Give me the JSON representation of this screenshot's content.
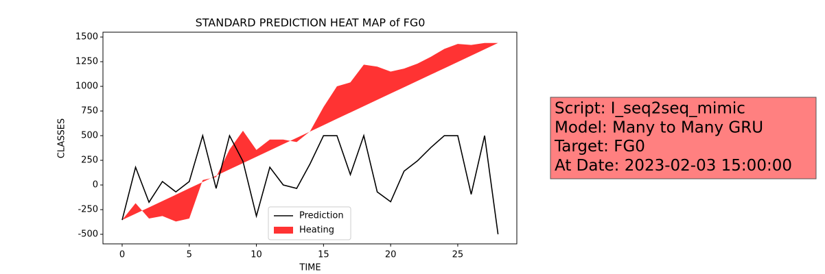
{
  "chart_data": {
    "type": "line",
    "title": "STANDARD PREDICTION HEAT MAP of FG0",
    "xlabel": "TIME",
    "ylabel": "CLASSES",
    "x": [
      0,
      1,
      2,
      3,
      4,
      5,
      6,
      7,
      8,
      9,
      10,
      11,
      12,
      13,
      14,
      15,
      16,
      17,
      18,
      19,
      20,
      21,
      22,
      23,
      24,
      25,
      26,
      27,
      28
    ],
    "series": [
      {
        "name": "Prediction",
        "color": "#000000",
        "style": "line",
        "values": [
          -355,
          180,
          -175,
          35,
          -70,
          35,
          500,
          -35,
          500,
          240,
          -315,
          180,
          0,
          -35,
          215,
          500,
          500,
          105,
          500,
          -70,
          -170,
          140,
          245,
          380,
          500,
          500,
          -95,
          500,
          -500
        ]
      },
      {
        "name": "Heating",
        "color": "#ff0000",
        "style": "fill_between",
        "values": [
          -355,
          -185,
          -340,
          -315,
          -370,
          -340,
          50,
          80,
          360,
          550,
          355,
          460,
          460,
          435,
          545,
          790,
          1000,
          1040,
          1220,
          1200,
          1150,
          1180,
          1230,
          1300,
          1380,
          1430,
          1420,
          1440,
          1440
        ],
        "baseline": [
          -355,
          -291,
          -227,
          -163,
          -99,
          -34,
          30,
          94,
          158,
          222,
          286,
          350,
          414,
          478,
          542,
          606,
          671,
          735,
          799,
          863,
          927,
          991,
          1055,
          1119,
          1183,
          1247,
          1311,
          1375,
          1440
        ]
      }
    ],
    "xlim": [
      -1.43,
      29.4
    ],
    "xticks": [
      0,
      5,
      10,
      15,
      20,
      25
    ],
    "ylim": [
      -597,
      1549
    ],
    "yticks": [
      -500,
      -250,
      0,
      250,
      500,
      750,
      1000,
      1250,
      1500
    ],
    "legend": "lower center",
    "annotations": [
      "Script: I_seq2seq_mimic",
      "Model: Many to Many GRU",
      "Target: FG0",
      "At Date: 2023-02-03 15:00:00"
    ],
    "annotation_color": "#ff8080"
  }
}
